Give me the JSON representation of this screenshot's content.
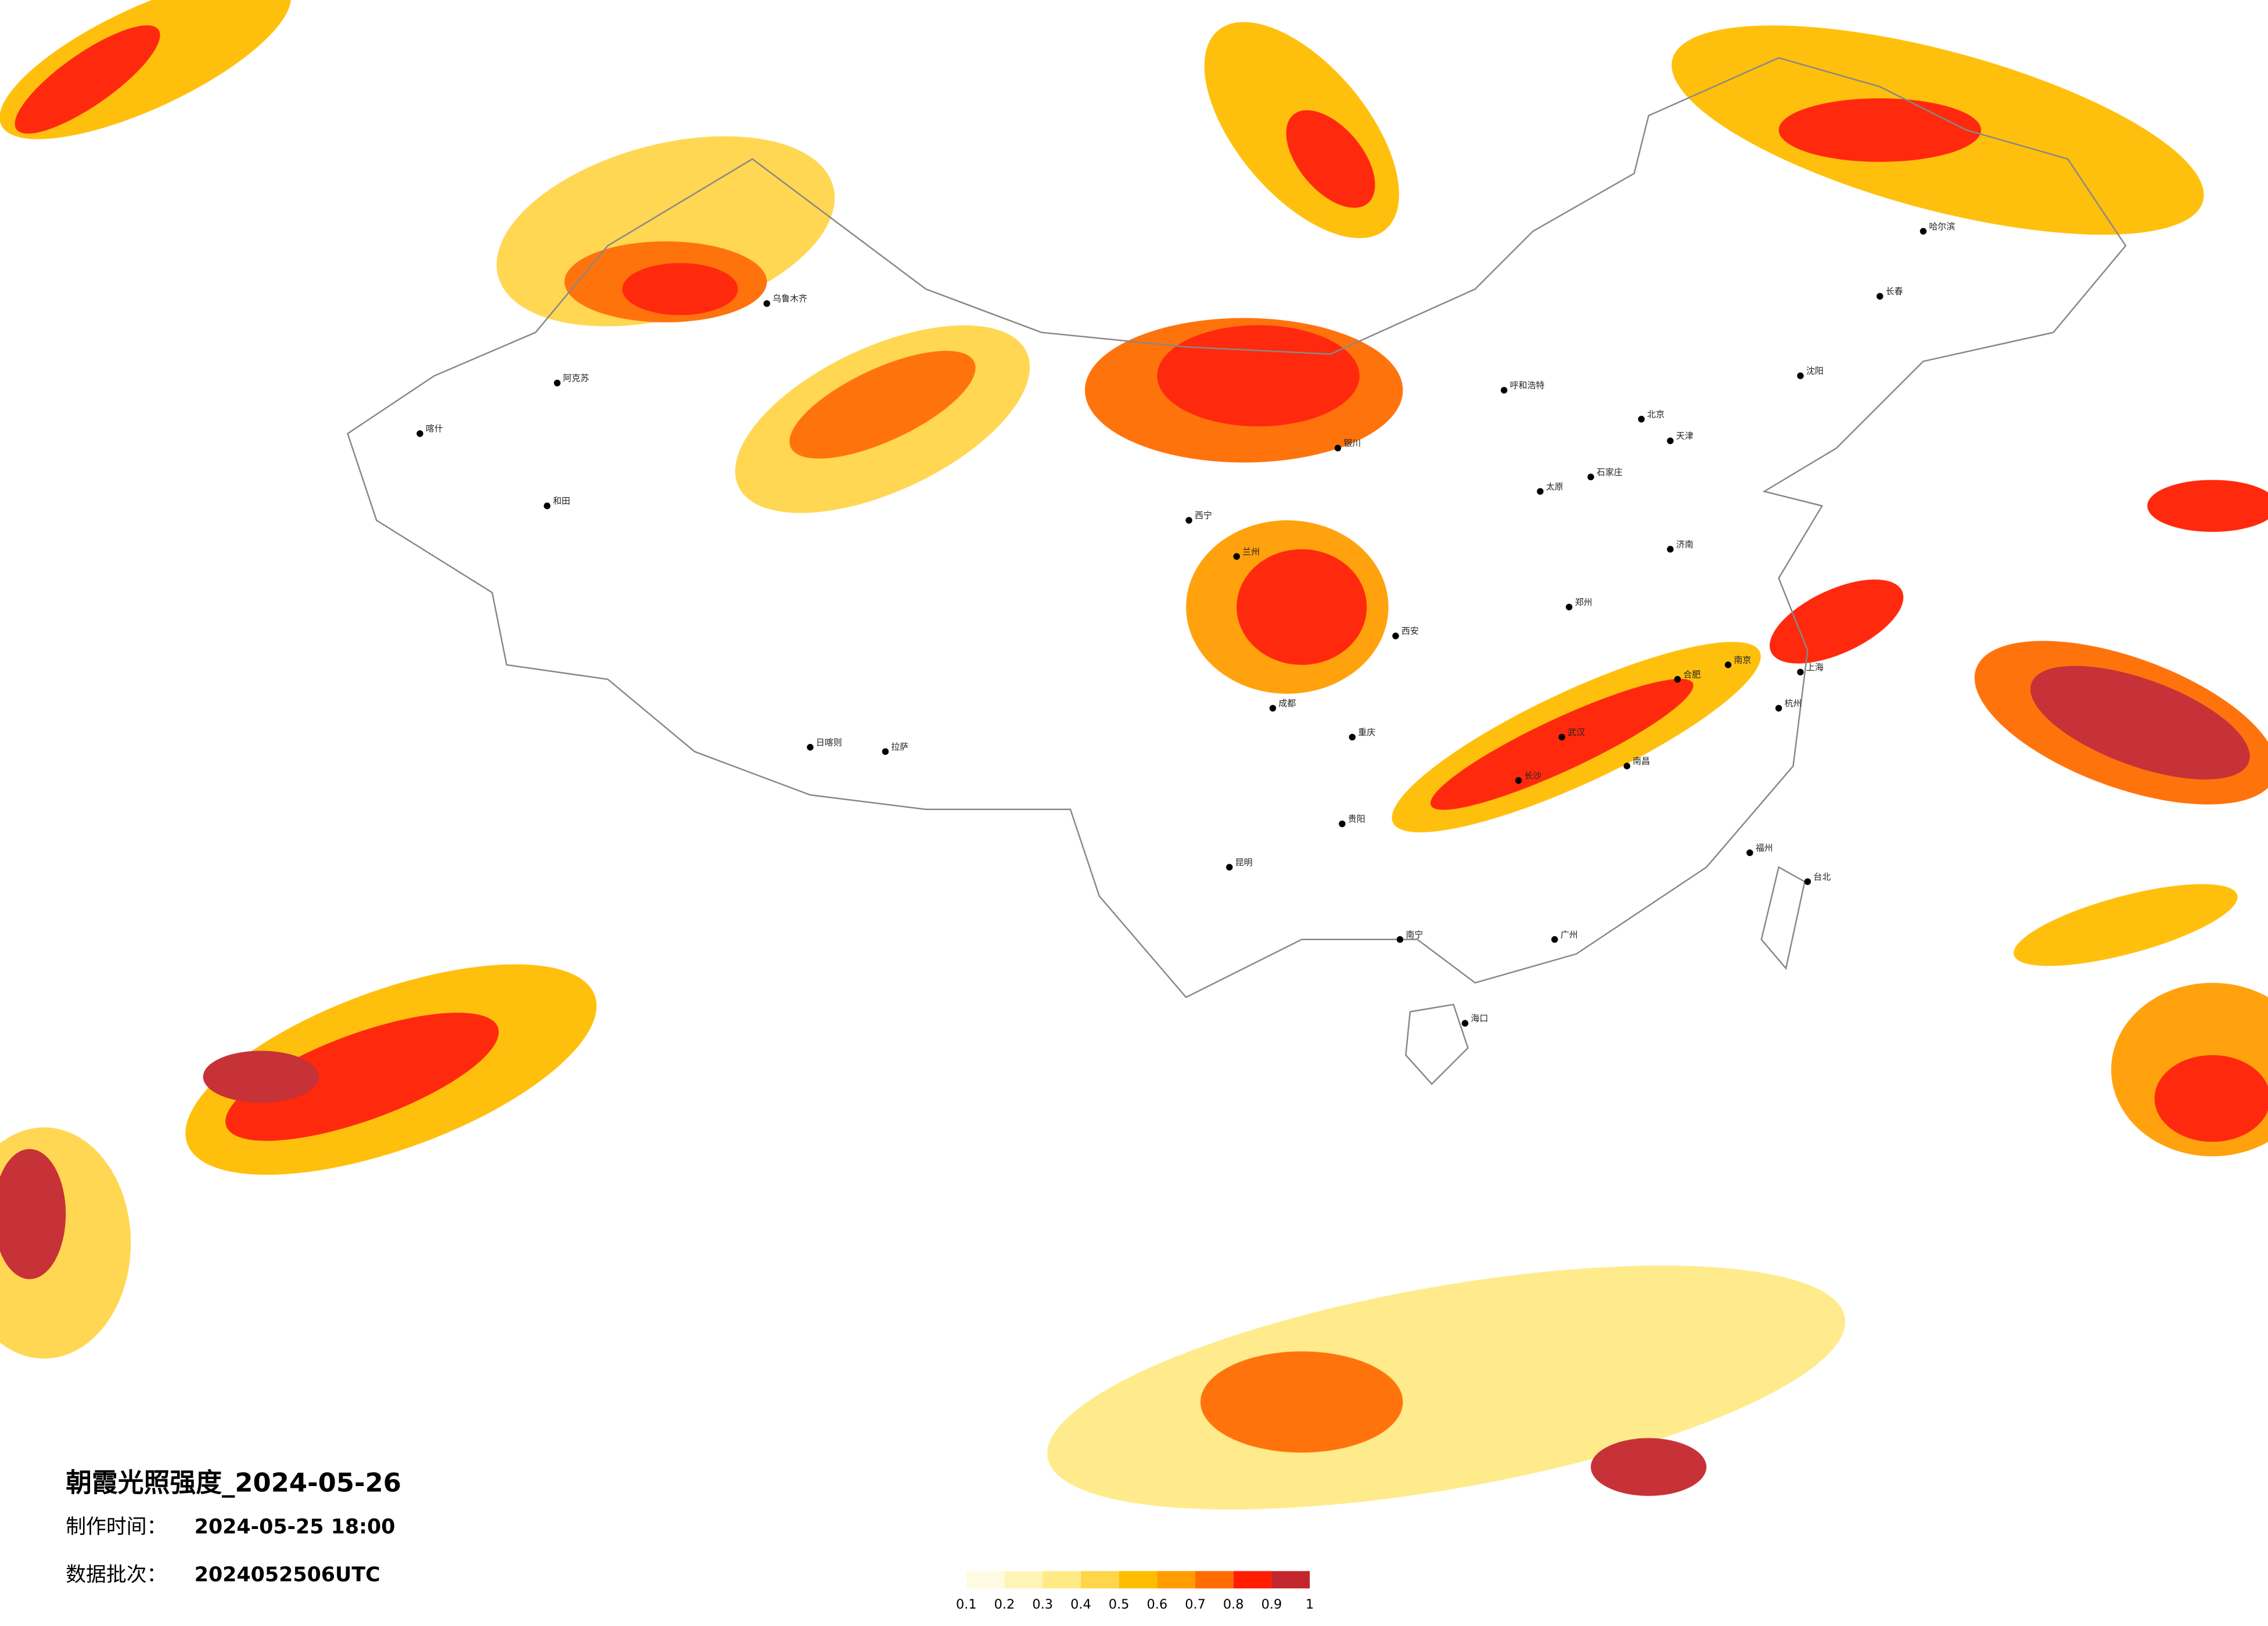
{
  "title": "朝霞光照强度_2024-05-26",
  "made_label": "制作时间：",
  "made_value": "2024-05-25 18:00",
  "batch_label": "数据批次：",
  "batch_value": "2024052506UTC",
  "legend": {
    "colors": [
      "#fffbe3",
      "#fff4b8",
      "#ffea85",
      "#ffd54a",
      "#ffbd00",
      "#ff9d00",
      "#ff6c00",
      "#ff1e00",
      "#c4262e"
    ],
    "ticks": [
      0.1,
      0.2,
      0.3,
      0.4,
      0.5,
      0.6,
      0.7,
      0.8,
      0.9,
      1
    ]
  },
  "cities": [
    "乌鲁木齐",
    "阿克苏",
    "和田",
    "喀什",
    "拉萨",
    "日喀则",
    "西宁",
    "兰州",
    "银川",
    "成都",
    "重庆",
    "贵阳",
    "昆明",
    "南宁",
    "广州",
    "福州",
    "南京",
    "上海",
    "武汉",
    "长沙",
    "郑州",
    "西安",
    "太原",
    "石家庄",
    "北京",
    "天津",
    "沈阳",
    "长春",
    "哈尔滨",
    "呼和浩特",
    "济南",
    "海口",
    "台北",
    "杭州",
    "合肥",
    "南昌"
  ]
}
